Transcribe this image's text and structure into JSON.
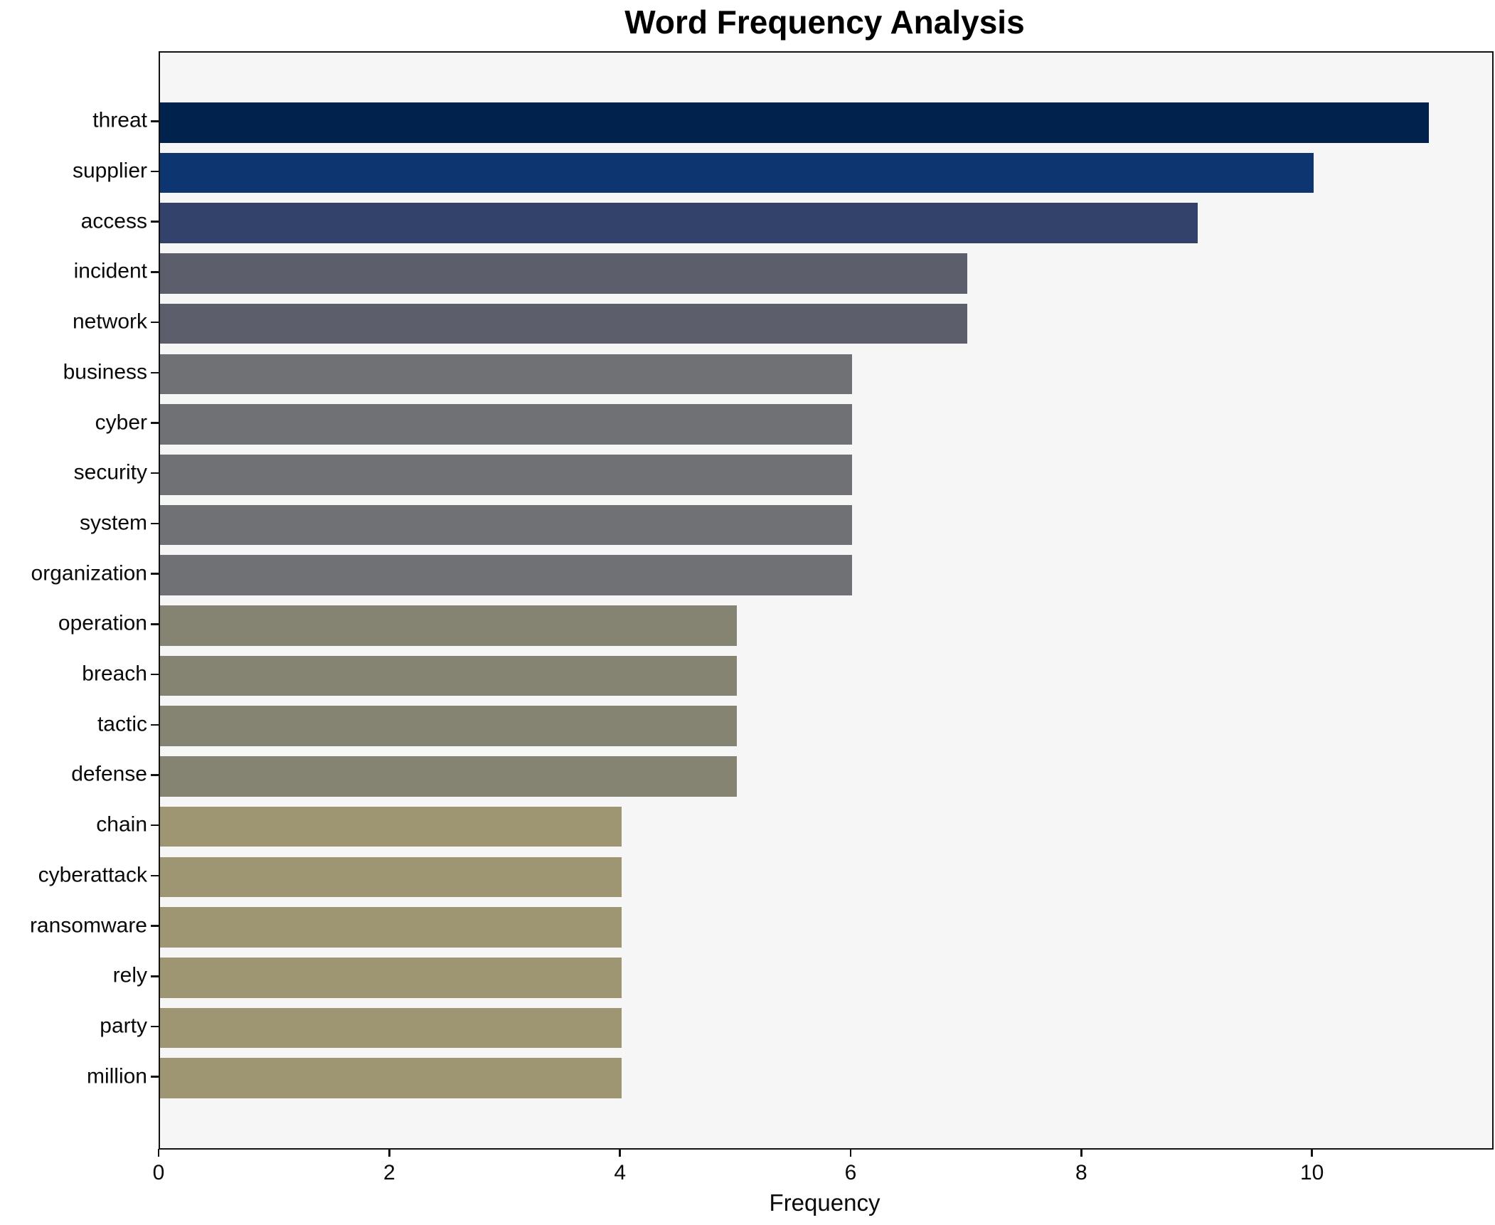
{
  "title": "Word Frequency Analysis",
  "chart_data": {
    "type": "bar",
    "orientation": "horizontal",
    "title": "Word Frequency Analysis",
    "xlabel": "Frequency",
    "ylabel": "",
    "categories": [
      "threat",
      "supplier",
      "access",
      "incident",
      "network",
      "business",
      "cyber",
      "security",
      "system",
      "organization",
      "operation",
      "breach",
      "tactic",
      "defense",
      "chain",
      "cyberattack",
      "ransomware",
      "rely",
      "party",
      "million"
    ],
    "values": [
      11,
      10,
      9,
      7,
      7,
      6,
      6,
      6,
      6,
      6,
      5,
      5,
      5,
      5,
      4,
      4,
      4,
      4,
      4,
      4
    ],
    "bar_colors": [
      "#00224d",
      "#0d3671",
      "#32426b",
      "#5c5f6b",
      "#5c5f6b",
      "#707174",
      "#707174",
      "#707174",
      "#707174",
      "#707174",
      "#858372",
      "#858372",
      "#858372",
      "#858372",
      "#9e9672",
      "#9e9672",
      "#9e9672",
      "#9e9672",
      "#9e9672",
      "#9e9672"
    ],
    "xlim": [
      0,
      11.55
    ],
    "xticks": [
      "0",
      "2",
      "4",
      "6",
      "8",
      "10"
    ],
    "xtick_values": [
      0,
      2,
      4,
      6,
      8,
      10
    ],
    "grid": false,
    "legend": "none",
    "plot_background": "#f6f6f7",
    "figure_background": "#ffffff",
    "spine_color": "#121212",
    "bar_height_fraction": 0.8
  }
}
